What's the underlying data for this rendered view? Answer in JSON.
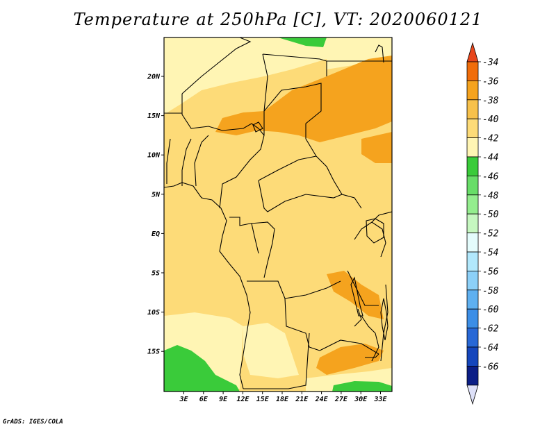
{
  "title": "Temperature at 250hPa [C], VT: 2020060121",
  "footer": "GrADS: IGES/COLA",
  "map": {
    "lat_ticks": [
      "20N",
      "15N",
      "10N",
      "5N",
      "EQ",
      "5S",
      "10S",
      "15S"
    ],
    "lon_ticks": [
      "3E",
      "6E",
      "9E",
      "12E",
      "15E",
      "18E",
      "21E",
      "24E",
      "27E",
      "30E",
      "33E"
    ]
  },
  "colorbar": {
    "labels": [
      "-34",
      "-36",
      "-38",
      "-40",
      "-42",
      "-44",
      "-46",
      "-48",
      "-50",
      "-52",
      "-54",
      "-56",
      "-58",
      "-60",
      "-62",
      "-64",
      "-66"
    ],
    "colors": [
      "#e8461c",
      "#f06d0a",
      "#f5a31e",
      "#f7c14b",
      "#fddb78",
      "#fff5b4",
      "#3acb3a",
      "#68dd68",
      "#94ed8e",
      "#c6f7c0",
      "#e4fcfc",
      "#b2e8fc",
      "#8cd0f8",
      "#5fb0f0",
      "#3c8ee6",
      "#2868d6",
      "#1546bc",
      "#0b1e86",
      "#dde0f8"
    ]
  }
}
